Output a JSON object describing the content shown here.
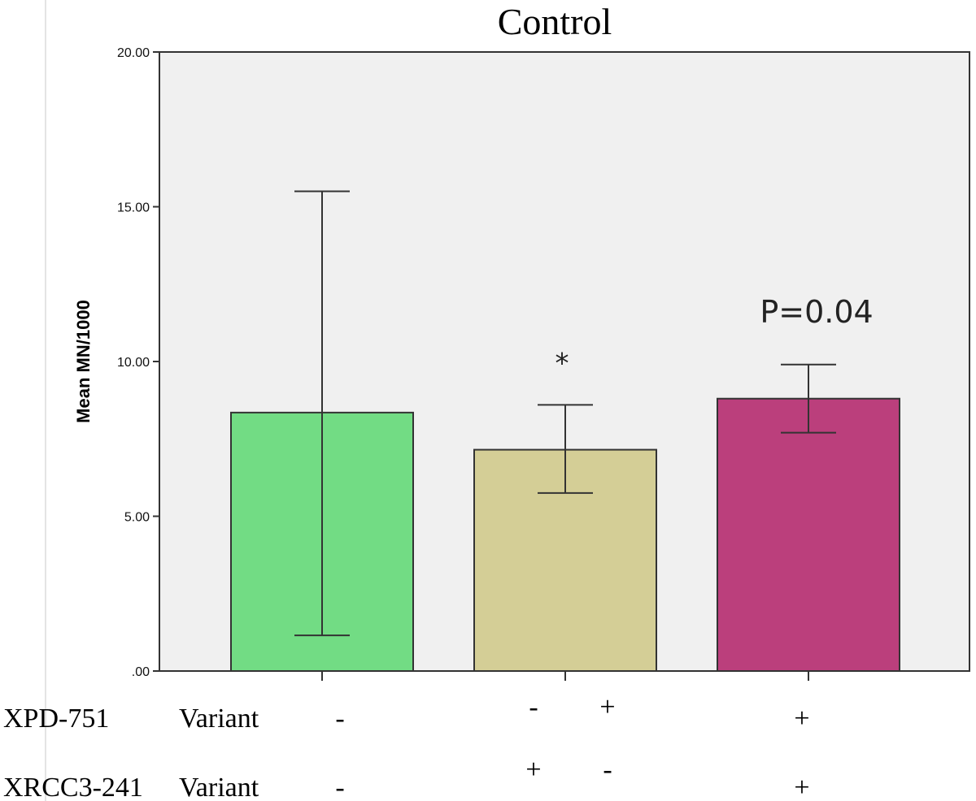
{
  "chart_data": {
    "type": "bar",
    "title": "Control",
    "ylabel": "Mean MN/1000",
    "xlabel": "",
    "ylim": [
      0,
      20
    ],
    "yticks": [
      0,
      5,
      10,
      15,
      20
    ],
    "ytick_labels": [
      ".00",
      "5.00",
      "10.00",
      "15.00",
      "20.00"
    ],
    "grid": false,
    "legend": "none",
    "plot_background": "#f0f0f0",
    "bars": [
      {
        "value": 8.35,
        "err_low": 1.15,
        "err_high": 15.5,
        "color": "#72dc84",
        "annotation": ""
      },
      {
        "value": 7.15,
        "err_low": 5.75,
        "err_high": 8.6,
        "color": "#d4ce96",
        "annotation": "*"
      },
      {
        "value": 8.8,
        "err_low": 7.7,
        "err_high": 9.9,
        "color": "#bb3f7c",
        "annotation": "P=0.04"
      }
    ],
    "genotype_table": {
      "rows": [
        {
          "gene": "XPD-751",
          "label": "Variant",
          "groups": [
            [
              "-"
            ],
            [
              "-",
              "+"
            ],
            [
              "+"
            ]
          ]
        },
        {
          "gene": "XRCC3-241",
          "label": "Variant",
          "groups": [
            [
              "-"
            ],
            [
              "+",
              "-"
            ],
            [
              "+"
            ]
          ]
        }
      ]
    }
  }
}
